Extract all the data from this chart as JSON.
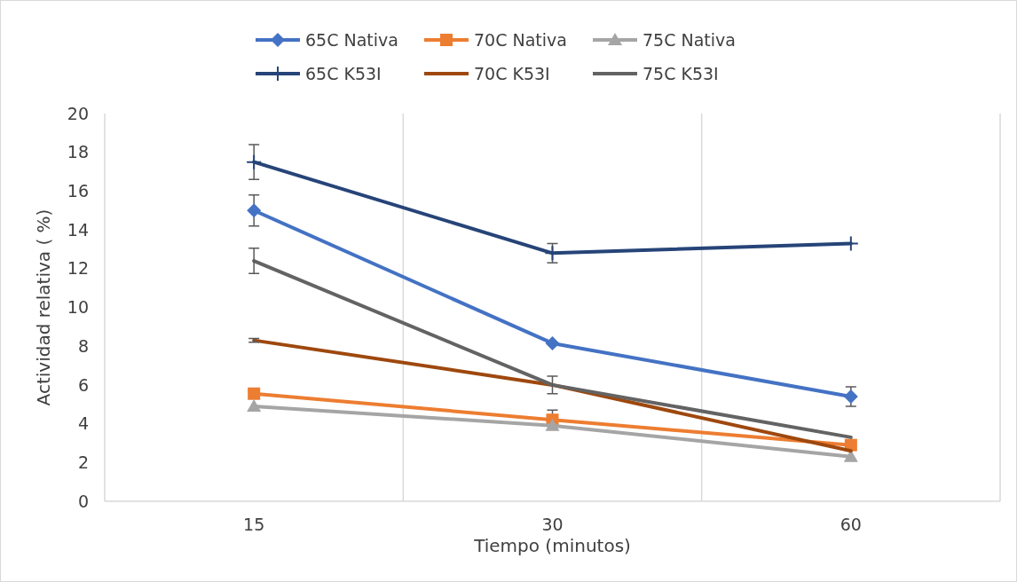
{
  "chart_data": {
    "type": "line",
    "xlabel": "Tiempo (minutos)",
    "ylabel": "Actividad relativa ( %)",
    "categories": [
      "15",
      "30",
      "60"
    ],
    "ylim": [
      0,
      20
    ],
    "yticks": [
      0,
      2,
      4,
      6,
      8,
      10,
      12,
      14,
      16,
      18,
      20
    ],
    "grid": "x",
    "legend": "top",
    "series": [
      {
        "name": "65C Nativa",
        "color": "#4472c4",
        "marker": "diamond",
        "values": [
          15.0,
          8.15,
          5.4
        ],
        "errors": [
          0.8,
          null,
          0.5
        ]
      },
      {
        "name": "70C Nativa",
        "color": "#ed7d31",
        "marker": "square",
        "values": [
          5.55,
          4.2,
          2.9
        ],
        "errors": [
          null,
          0.5,
          null
        ]
      },
      {
        "name": "75C Nativa",
        "color": "#a5a5a5",
        "marker": "triangle",
        "values": [
          4.9,
          3.9,
          2.3
        ],
        "errors": [
          null,
          null,
          null
        ]
      },
      {
        "name": "65C K53I",
        "color": "#264478",
        "marker": "cross",
        "values": [
          17.5,
          12.8,
          13.3
        ],
        "errors": [
          0.9,
          0.5,
          null
        ]
      },
      {
        "name": "70C K53I",
        "color": "#9e480e",
        "marker": "none",
        "values": [
          8.3,
          6.0,
          2.6
        ],
        "errors": [
          0.1,
          null,
          null
        ]
      },
      {
        "name": "75C K53I",
        "color": "#636363",
        "marker": "none",
        "values": [
          12.4,
          6.0,
          3.3
        ],
        "errors": [
          0.65,
          0.45,
          null
        ]
      }
    ]
  }
}
